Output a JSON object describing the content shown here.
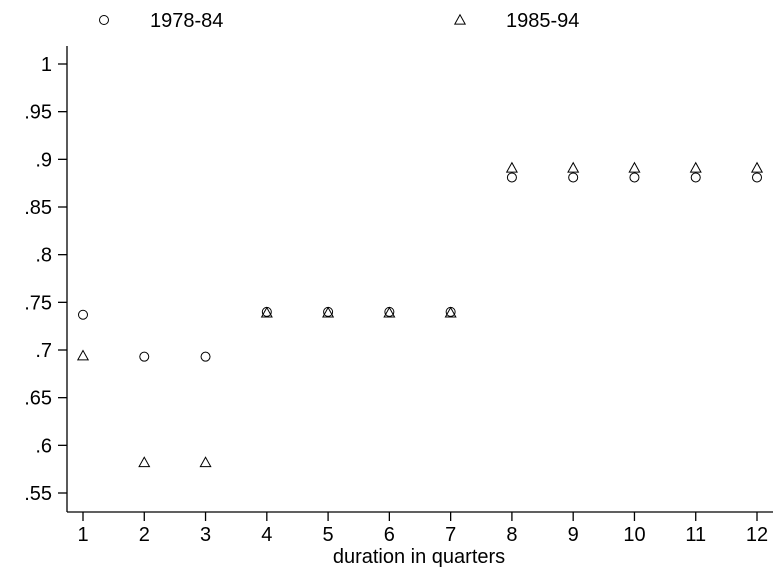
{
  "chart_data": {
    "type": "scatter",
    "xlabel": "duration in quarters",
    "ylabel": "",
    "xlim": [
      1,
      12
    ],
    "ylim": [
      0.55,
      1
    ],
    "x_ticks": [
      1,
      2,
      3,
      4,
      5,
      6,
      7,
      8,
      9,
      10,
      11,
      12
    ],
    "x_tick_labels": [
      "1",
      "2",
      "3",
      "4",
      "5",
      "6",
      "7",
      "8",
      "9",
      "10",
      "11",
      "12"
    ],
    "y_ticks": [
      0.55,
      0.6,
      0.65,
      0.7,
      0.75,
      0.8,
      0.85,
      0.9,
      0.95,
      1
    ],
    "y_tick_labels": [
      ".55",
      ".6",
      ".65",
      ".7",
      ".75",
      ".8",
      ".85",
      ".9",
      ".95",
      "1"
    ],
    "grid": false,
    "legend_position": "top",
    "series": [
      {
        "name": "1978-84",
        "marker": "circle",
        "color": "#000000",
        "x": [
          1,
          2,
          3,
          4,
          5,
          6,
          7,
          8,
          9,
          10,
          11,
          12
        ],
        "y": [
          0.737,
          0.693,
          0.693,
          0.74,
          0.74,
          0.74,
          0.74,
          0.881,
          0.881,
          0.881,
          0.881,
          0.881
        ]
      },
      {
        "name": "1985-94",
        "marker": "triangle",
        "color": "#000000",
        "x": [
          1,
          2,
          3,
          4,
          5,
          6,
          7,
          8,
          9,
          10,
          11,
          12
        ],
        "y": [
          0.694,
          0.582,
          0.582,
          0.739,
          0.739,
          0.739,
          0.739,
          0.891,
          0.891,
          0.891,
          0.891,
          0.891
        ]
      }
    ]
  }
}
